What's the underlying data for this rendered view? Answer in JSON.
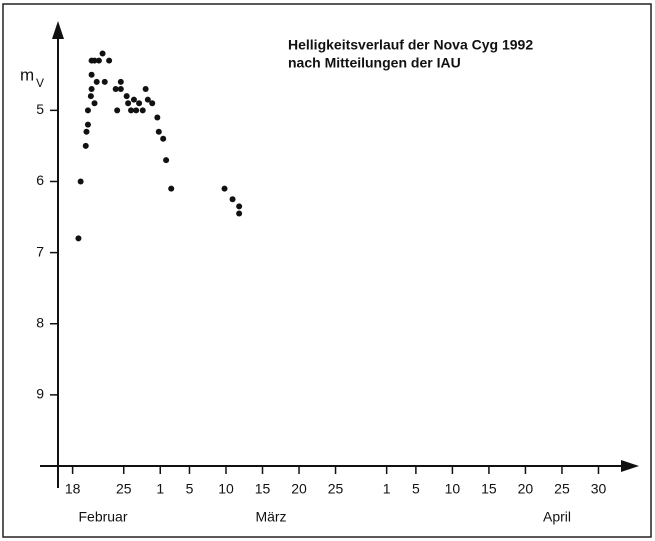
{
  "chart_data": {
    "type": "scatter",
    "title": [
      "Helligkeitsverlauf der Nova Cyg 1992",
      "nach Mitteilungen der IAU"
    ],
    "ylabel": {
      "main": "m",
      "sub": "V"
    },
    "months": [
      "Februar",
      "März",
      "April"
    ],
    "color": "#111111",
    "xlim": [
      47,
      126
    ],
    "ylim": [
      10,
      3.8
    ],
    "yticks": [
      5,
      6,
      7,
      8,
      9
    ],
    "xticks": [
      {
        "value": 49,
        "label": "18"
      },
      {
        "value": 56,
        "label": "25"
      },
      {
        "value": 61,
        "label": "1"
      },
      {
        "value": 65,
        "label": "5"
      },
      {
        "value": 70,
        "label": "10"
      },
      {
        "value": 75,
        "label": "15"
      },
      {
        "value": 80,
        "label": "20"
      },
      {
        "value": 85,
        "label": "25"
      },
      {
        "value": 92,
        "label": "1"
      },
      {
        "value": 96,
        "label": "5"
      },
      {
        "value": 101,
        "label": "10"
      },
      {
        "value": 106,
        "label": "15"
      },
      {
        "value": 111,
        "label": "20"
      },
      {
        "value": 116,
        "label": "25"
      },
      {
        "value": 121,
        "label": "30"
      }
    ],
    "x": [
      49.8,
      50.1,
      50.8,
      50.9,
      51.1,
      51.1,
      51.5,
      51.6,
      51.6,
      51.6,
      52.0,
      52.0,
      52.3,
      52.6,
      53.1,
      53.4,
      54.0,
      54.9,
      55.1,
      55.6,
      55.6,
      56.4,
      56.6,
      57.0,
      57.4,
      57.7,
      58.1,
      58.6,
      59.0,
      59.3,
      59.9,
      60.6,
      60.8,
      61.4,
      61.8,
      62.5,
      69.8,
      70.9,
      71.8,
      71.8
    ],
    "values": [
      6.8,
      6.0,
      5.5,
      5.3,
      5.2,
      5.0,
      4.8,
      4.7,
      4.5,
      4.3,
      4.9,
      4.3,
      4.6,
      4.3,
      4.2,
      4.6,
      4.3,
      4.7,
      5.0,
      4.7,
      4.6,
      4.8,
      4.9,
      5.0,
      4.85,
      5.0,
      4.9,
      5.0,
      4.7,
      4.85,
      4.9,
      5.1,
      5.3,
      5.4,
      5.7,
      6.1,
      6.1,
      6.25,
      6.35,
      6.45
    ]
  }
}
